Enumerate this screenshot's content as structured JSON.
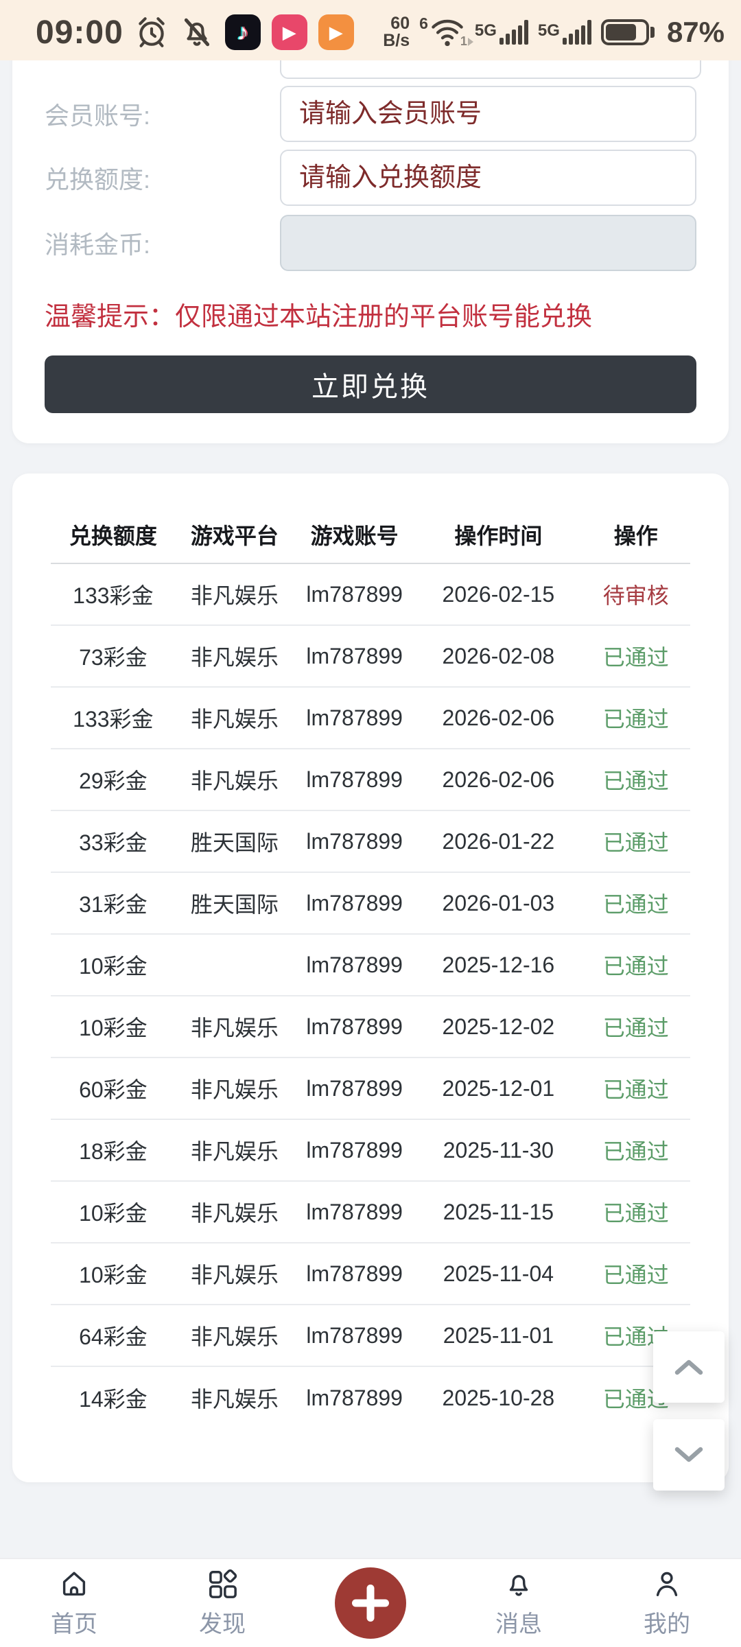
{
  "status_bar": {
    "time": "09:00",
    "net_speed_value": "60",
    "net_speed_unit": "B/s",
    "wifi_badge": "6",
    "wifi_sub": "1",
    "sim1_label": "5G",
    "sim2_label": "5G",
    "battery_percent": "87%"
  },
  "icons": {
    "tiktok_glyph": "♪",
    "play_glyph": "▶"
  },
  "form": {
    "fields": [
      {
        "label": "会员账号:",
        "placeholder": "请输入会员账号",
        "disabled": false
      },
      {
        "label": "兑换额度:",
        "placeholder": "请输入兑换额度",
        "disabled": false
      },
      {
        "label": "消耗金币:",
        "placeholder": "",
        "disabled": true
      }
    ],
    "tip": "温馨提示：仅限通过本站注册的平台账号能兑换",
    "submit_label": "立即兑换"
  },
  "table": {
    "headers": [
      "兑换额度",
      "游戏平台",
      "游戏账号",
      "操作时间",
      "操作"
    ],
    "status_pending": "待审核",
    "status_passed": "已通过",
    "rows": [
      [
        "133彩金",
        "非凡娱乐",
        "lm787899",
        "2026-02-15",
        "待审核"
      ],
      [
        "73彩金",
        "非凡娱乐",
        "lm787899",
        "2026-02-08",
        "已通过"
      ],
      [
        "133彩金",
        "非凡娱乐",
        "lm787899",
        "2026-02-06",
        "已通过"
      ],
      [
        "29彩金",
        "非凡娱乐",
        "lm787899",
        "2026-02-06",
        "已通过"
      ],
      [
        "33彩金",
        "胜天国际",
        "lm787899",
        "2026-01-22",
        "已通过"
      ],
      [
        "31彩金",
        "胜天国际",
        "lm787899",
        "2026-01-03",
        "已通过"
      ],
      [
        "10彩金",
        "",
        "lm787899",
        "2025-12-16",
        "已通过"
      ],
      [
        "10彩金",
        "非凡娱乐",
        "lm787899",
        "2025-12-02",
        "已通过"
      ],
      [
        "60彩金",
        "非凡娱乐",
        "lm787899",
        "2025-12-01",
        "已通过"
      ],
      [
        "18彩金",
        "非凡娱乐",
        "lm787899",
        "2025-11-30",
        "已通过"
      ],
      [
        "10彩金",
        "非凡娱乐",
        "lm787899",
        "2025-11-15",
        "已通过"
      ],
      [
        "10彩金",
        "非凡娱乐",
        "lm787899",
        "2025-11-04",
        "已通过"
      ],
      [
        "64彩金",
        "非凡娱乐",
        "lm787899",
        "2025-11-01",
        "已通过"
      ],
      [
        "14彩金",
        "非凡娱乐",
        "lm787899",
        "2025-10-28",
        "已通过"
      ]
    ]
  },
  "nav": {
    "items": [
      {
        "label": "首页"
      },
      {
        "label": "发现"
      },
      {
        "label": "消息"
      },
      {
        "label": "我的"
      }
    ]
  },
  "colors": {
    "status_bar_bg": "#fbf0e3",
    "page_bg": "#f1f3f6",
    "accent_red": "#9e3a34",
    "tip_red": "#c2303f",
    "placeholder_maroon": "#7e2b2b",
    "status_pending": "#a63c42",
    "status_passed": "#5b9c68",
    "button_dark": "#363b42"
  }
}
